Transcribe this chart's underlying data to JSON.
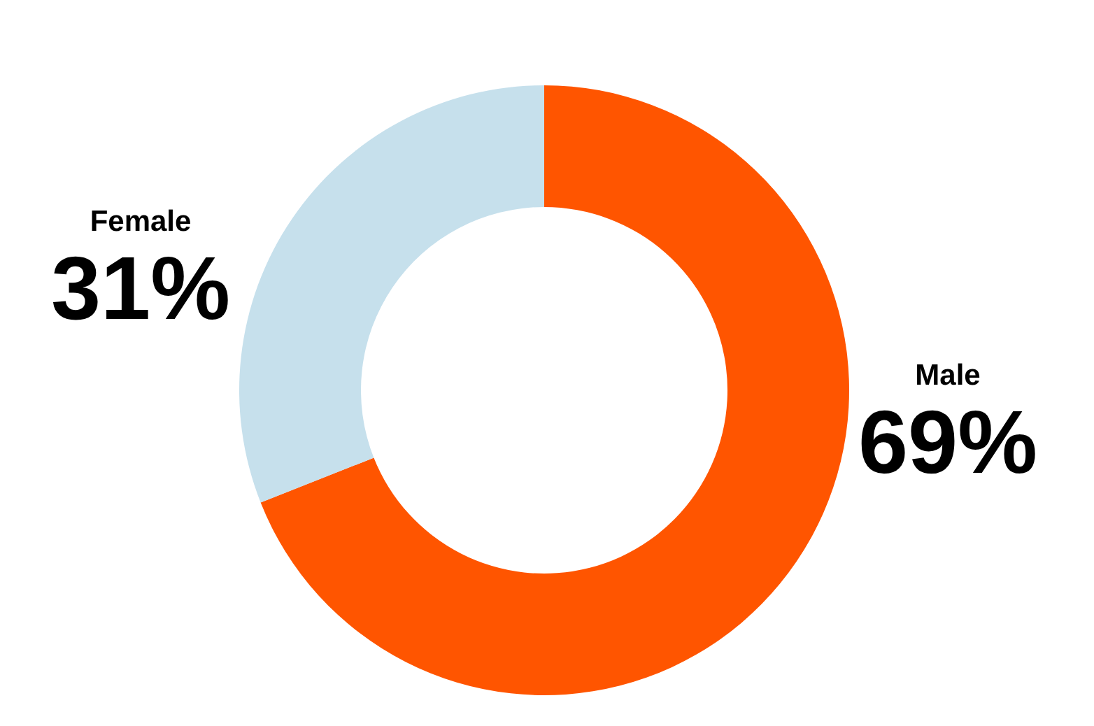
{
  "chart_data": {
    "type": "donut",
    "categories": [
      "Male",
      "Female"
    ],
    "values": [
      69,
      31
    ],
    "colors": [
      "#ff5500",
      "#c6e0ec"
    ],
    "value_labels": [
      "69%",
      "31%"
    ],
    "legend": false
  }
}
